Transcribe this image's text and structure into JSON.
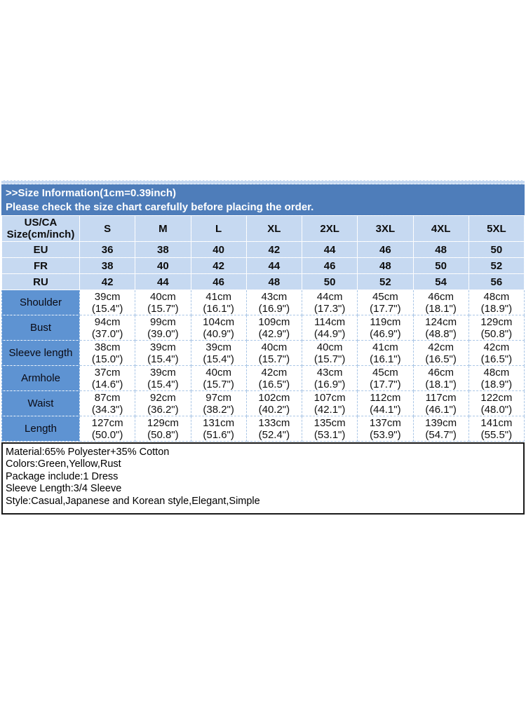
{
  "colors": {
    "banner_bg": "#4e7dba",
    "header_cell_bg": "#c6d9f1",
    "row_label_bg": "#5e93d2",
    "info_border": "#1a1a1a"
  },
  "banner": {
    "line1": ">>Size Information(1cm=0.39inch)",
    "line2": "Please check the size chart carefully before placing the order."
  },
  "size_chart": {
    "corner_line1": "US/CA",
    "corner_line2": "Size(cm/inch)",
    "size_labels": [
      "S",
      "M",
      "L",
      "XL",
      "2XL",
      "3XL",
      "4XL",
      "5XL"
    ],
    "region_rows": [
      {
        "label": "EU",
        "values": [
          "36",
          "38",
          "40",
          "42",
          "44",
          "46",
          "48",
          "50"
        ]
      },
      {
        "label": "FR",
        "values": [
          "38",
          "40",
          "42",
          "44",
          "46",
          "48",
          "50",
          "52"
        ]
      },
      {
        "label": "RU",
        "values": [
          "42",
          "44",
          "46",
          "48",
          "50",
          "52",
          "54",
          "56"
        ]
      }
    ],
    "measurement_rows": [
      {
        "label": "Shoulder",
        "cm": [
          "39cm",
          "40cm",
          "41cm",
          "43cm",
          "44cm",
          "45cm",
          "46cm",
          "48cm"
        ],
        "inch": [
          "(15.4\")",
          "(15.7\")",
          "(16.1\")",
          "(16.9\")",
          "(17.3\")",
          "(17.7\")",
          "(18.1\")",
          "(18.9\")"
        ]
      },
      {
        "label": "Bust",
        "cm": [
          "94cm",
          "99cm",
          "104cm",
          "109cm",
          "114cm",
          "119cm",
          "124cm",
          "129cm"
        ],
        "inch": [
          "(37.0\")",
          "(39.0\")",
          "(40.9\")",
          "(42.9\")",
          "(44.9\")",
          "(46.9\")",
          "(48.8\")",
          "(50.8\")"
        ]
      },
      {
        "label": "Sleeve length",
        "cm": [
          "38cm",
          "39cm",
          "39cm",
          "40cm",
          "40cm",
          "41cm",
          "42cm",
          "42cm"
        ],
        "inch": [
          "(15.0\")",
          "(15.4\")",
          "(15.4\")",
          "(15.7\")",
          "(15.7\")",
          "(16.1\")",
          "(16.5\")",
          "(16.5\")"
        ]
      },
      {
        "label": "Armhole",
        "cm": [
          "37cm",
          "39cm",
          "40cm",
          "42cm",
          "43cm",
          "45cm",
          "46cm",
          "48cm"
        ],
        "inch": [
          "(14.6\")",
          "(15.4\")",
          "(15.7\")",
          "(16.5\")",
          "(16.9\")",
          "(17.7\")",
          "(18.1\")",
          "(18.9\")"
        ]
      },
      {
        "label": "Waist",
        "cm": [
          "87cm",
          "92cm",
          "97cm",
          "102cm",
          "107cm",
          "112cm",
          "117cm",
          "122cm"
        ],
        "inch": [
          "(34.3\")",
          "(36.2\")",
          "(38.2\")",
          "(40.2\")",
          "(42.1\")",
          "(44.1\")",
          "(46.1\")",
          "(48.0\")"
        ]
      },
      {
        "label": "Length",
        "cm": [
          "127cm",
          "129cm",
          "131cm",
          "133cm",
          "135cm",
          "137cm",
          "139cm",
          "141cm"
        ],
        "inch": [
          "(50.0\")",
          "(50.8\")",
          "(51.6\")",
          "(52.4\")",
          "(53.1\")",
          "(53.9\")",
          "(54.7\")",
          "(55.5\")"
        ]
      }
    ]
  },
  "product_info": {
    "lines": [
      "Material:65% Polyester+35% Cotton",
      "Colors:Green,Yellow,Rust",
      "Package include:1 Dress",
      "Sleeve Length:3/4 Sleeve",
      "Style:Casual,Japanese and Korean style,Elegant,Simple"
    ]
  }
}
